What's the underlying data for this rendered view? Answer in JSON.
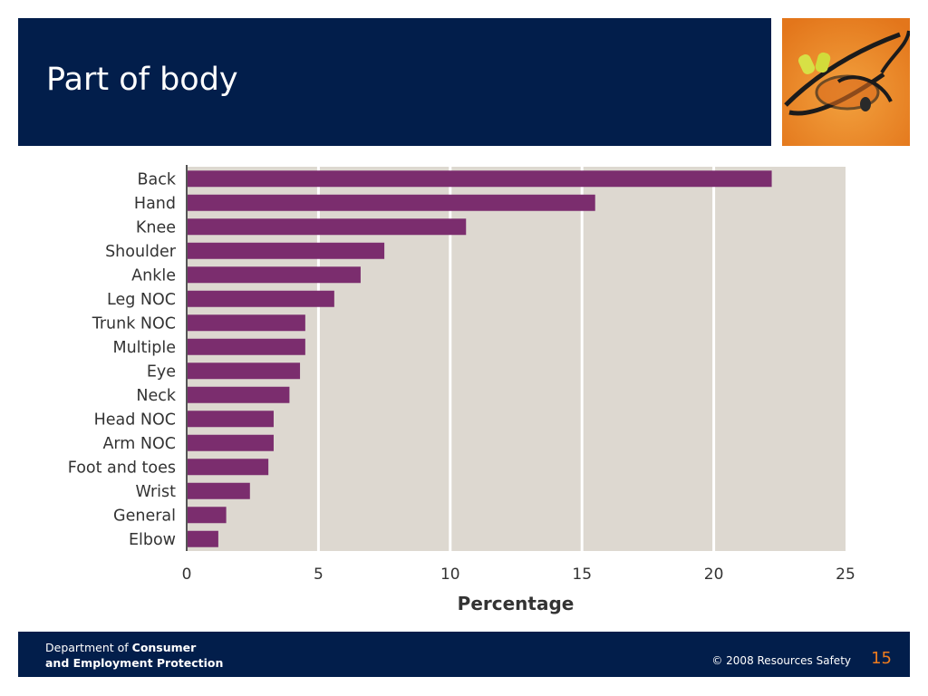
{
  "slide": {
    "title": "Part of body"
  },
  "footer": {
    "dept_prefix": "Department of ",
    "dept_bold1": "Consumer",
    "dept_bold2": "and Employment Protection",
    "copyright": "© 2008 Resources Safety",
    "page_number": "15"
  },
  "colors": {
    "header_bg": "#021e4b",
    "bar": "#7b2d6e",
    "plot_bg": "#ddd8d0",
    "gridline": "#ffffff",
    "page_number": "#f07c1e"
  },
  "photo": {
    "icon": "safety-glasses-and-earplugs-photo"
  },
  "chart_data": {
    "type": "bar",
    "orientation": "horizontal",
    "categories": [
      "Back",
      "Hand",
      "Knee",
      "Shoulder",
      "Ankle",
      "Leg NOC",
      "Trunk NOC",
      "Multiple",
      "Eye",
      "Neck",
      "Head NOC",
      "Arm NOC",
      "Foot and toes",
      "Wrist",
      "General",
      "Elbow"
    ],
    "values": [
      22.2,
      15.5,
      10.6,
      7.5,
      6.6,
      5.6,
      4.5,
      4.5,
      4.3,
      3.9,
      3.3,
      3.3,
      3.1,
      2.4,
      1.5,
      1.2
    ],
    "xlabel": "Percentage",
    "ylabel": "",
    "xlim": [
      0,
      25
    ],
    "xticks": [
      "0",
      "5",
      "10",
      "15",
      "20",
      "25"
    ],
    "grid": true
  }
}
